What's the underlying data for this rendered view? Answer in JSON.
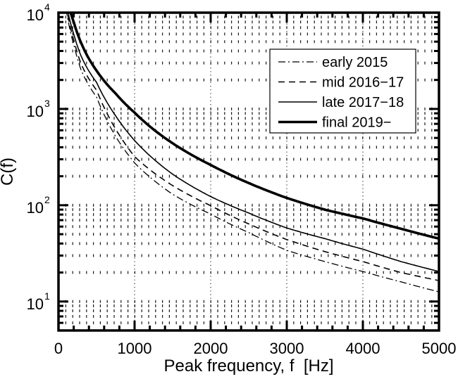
{
  "chart_data": {
    "type": "line",
    "title": "",
    "xlabel": "Peak frequency, f  [Hz]",
    "ylabel": "C(f)",
    "xlim": [
      0,
      5000
    ],
    "ylim": [
      5,
      10000
    ],
    "yscale": "log",
    "grid": true,
    "legend_position": "upper right",
    "x_ticks": [
      0,
      1000,
      2000,
      3000,
      4000,
      5000
    ],
    "x_tick_labels": [
      "0",
      "1000",
      "2000",
      "3000",
      "4000",
      "5000"
    ],
    "y_ticks": [
      10,
      100,
      1000,
      10000
    ],
    "y_tick_labels": [
      {
        "base": "10",
        "exp": "1"
      },
      {
        "base": "10",
        "exp": "2"
      },
      {
        "base": "10",
        "exp": "3"
      },
      {
        "base": "10",
        "exp": "4"
      }
    ],
    "x": [
      100,
      200,
      300,
      500,
      750,
      1000,
      1500,
      2000,
      2500,
      3000,
      3500,
      4000,
      4500,
      5000
    ],
    "series": [
      {
        "name": "early 2015",
        "style": "dashdot",
        "width": 1.3,
        "values": [
          11000,
          4700,
          2500,
          1330,
          520,
          275,
          130,
          81,
          52,
          34,
          26,
          20.5,
          16,
          12.6
        ]
      },
      {
        "name": "mid 2016−17",
        "style": "dashed",
        "width": 1.6,
        "values": [
          12000,
          5200,
          2900,
          1570,
          620,
          320,
          160,
          99,
          64,
          44,
          33,
          26,
          20,
          16.5
        ]
      },
      {
        "name": "late 2017−18",
        "style": "solid",
        "width": 1.6,
        "values": [
          13000,
          6000,
          3500,
          1890,
          850,
          470,
          210,
          123,
          83,
          58,
          45,
          35,
          26,
          20.5
        ]
      },
      {
        "name": "final 2019−",
        "style": "solid",
        "width": 3.6,
        "values": [
          16000,
          8000,
          4800,
          2500,
          1450,
          916,
          440,
          262,
          170,
          119,
          90,
          73,
          57,
          45
        ]
      }
    ]
  }
}
